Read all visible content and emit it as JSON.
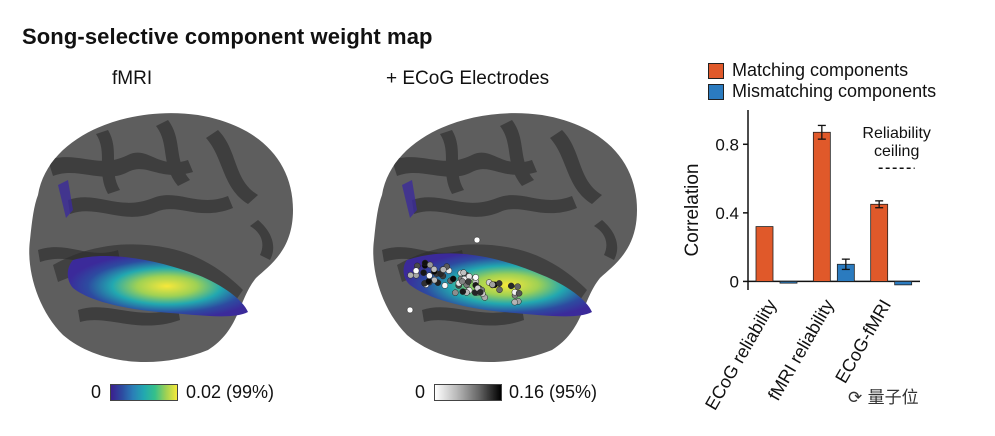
{
  "figure": {
    "title": "Song-selective component weight map",
    "panel_left": {
      "label": "fMRI",
      "colorbar_min": "0",
      "colorbar_max": "0.02 (99%)"
    },
    "panel_middle": {
      "label": "+ ECoG Electrodes",
      "colorbar_min": "0",
      "colorbar_max": "0.16 (95%)"
    },
    "watermark": "量子位"
  },
  "chart_data": {
    "type": "bar",
    "title": "",
    "xlabel": "",
    "ylabel": "Correlation",
    "ylim": [
      -0.05,
      1.0
    ],
    "yticks": [
      0,
      0.4,
      0.8
    ],
    "ytick_labels": [
      "0",
      "0.4",
      "0.8"
    ],
    "categories": [
      "ECoG reliability",
      "fMRI reliability",
      "ECoG-fMRI"
    ],
    "series": [
      {
        "name": "Matching components",
        "color": "#e0592a",
        "values": [
          0.32,
          0.87,
          0.45
        ],
        "errors": [
          0.0,
          0.04,
          0.02
        ]
      },
      {
        "name": "Mismatching components",
        "color": "#2b7bbf",
        "values": [
          -0.01,
          0.1,
          -0.02
        ],
        "errors": [
          0.0,
          0.03,
          0.0
        ]
      }
    ],
    "annotation": {
      "text_line1": "Reliability",
      "text_line2": "ceiling",
      "value": 0.66
    },
    "legend_placement": "top"
  }
}
